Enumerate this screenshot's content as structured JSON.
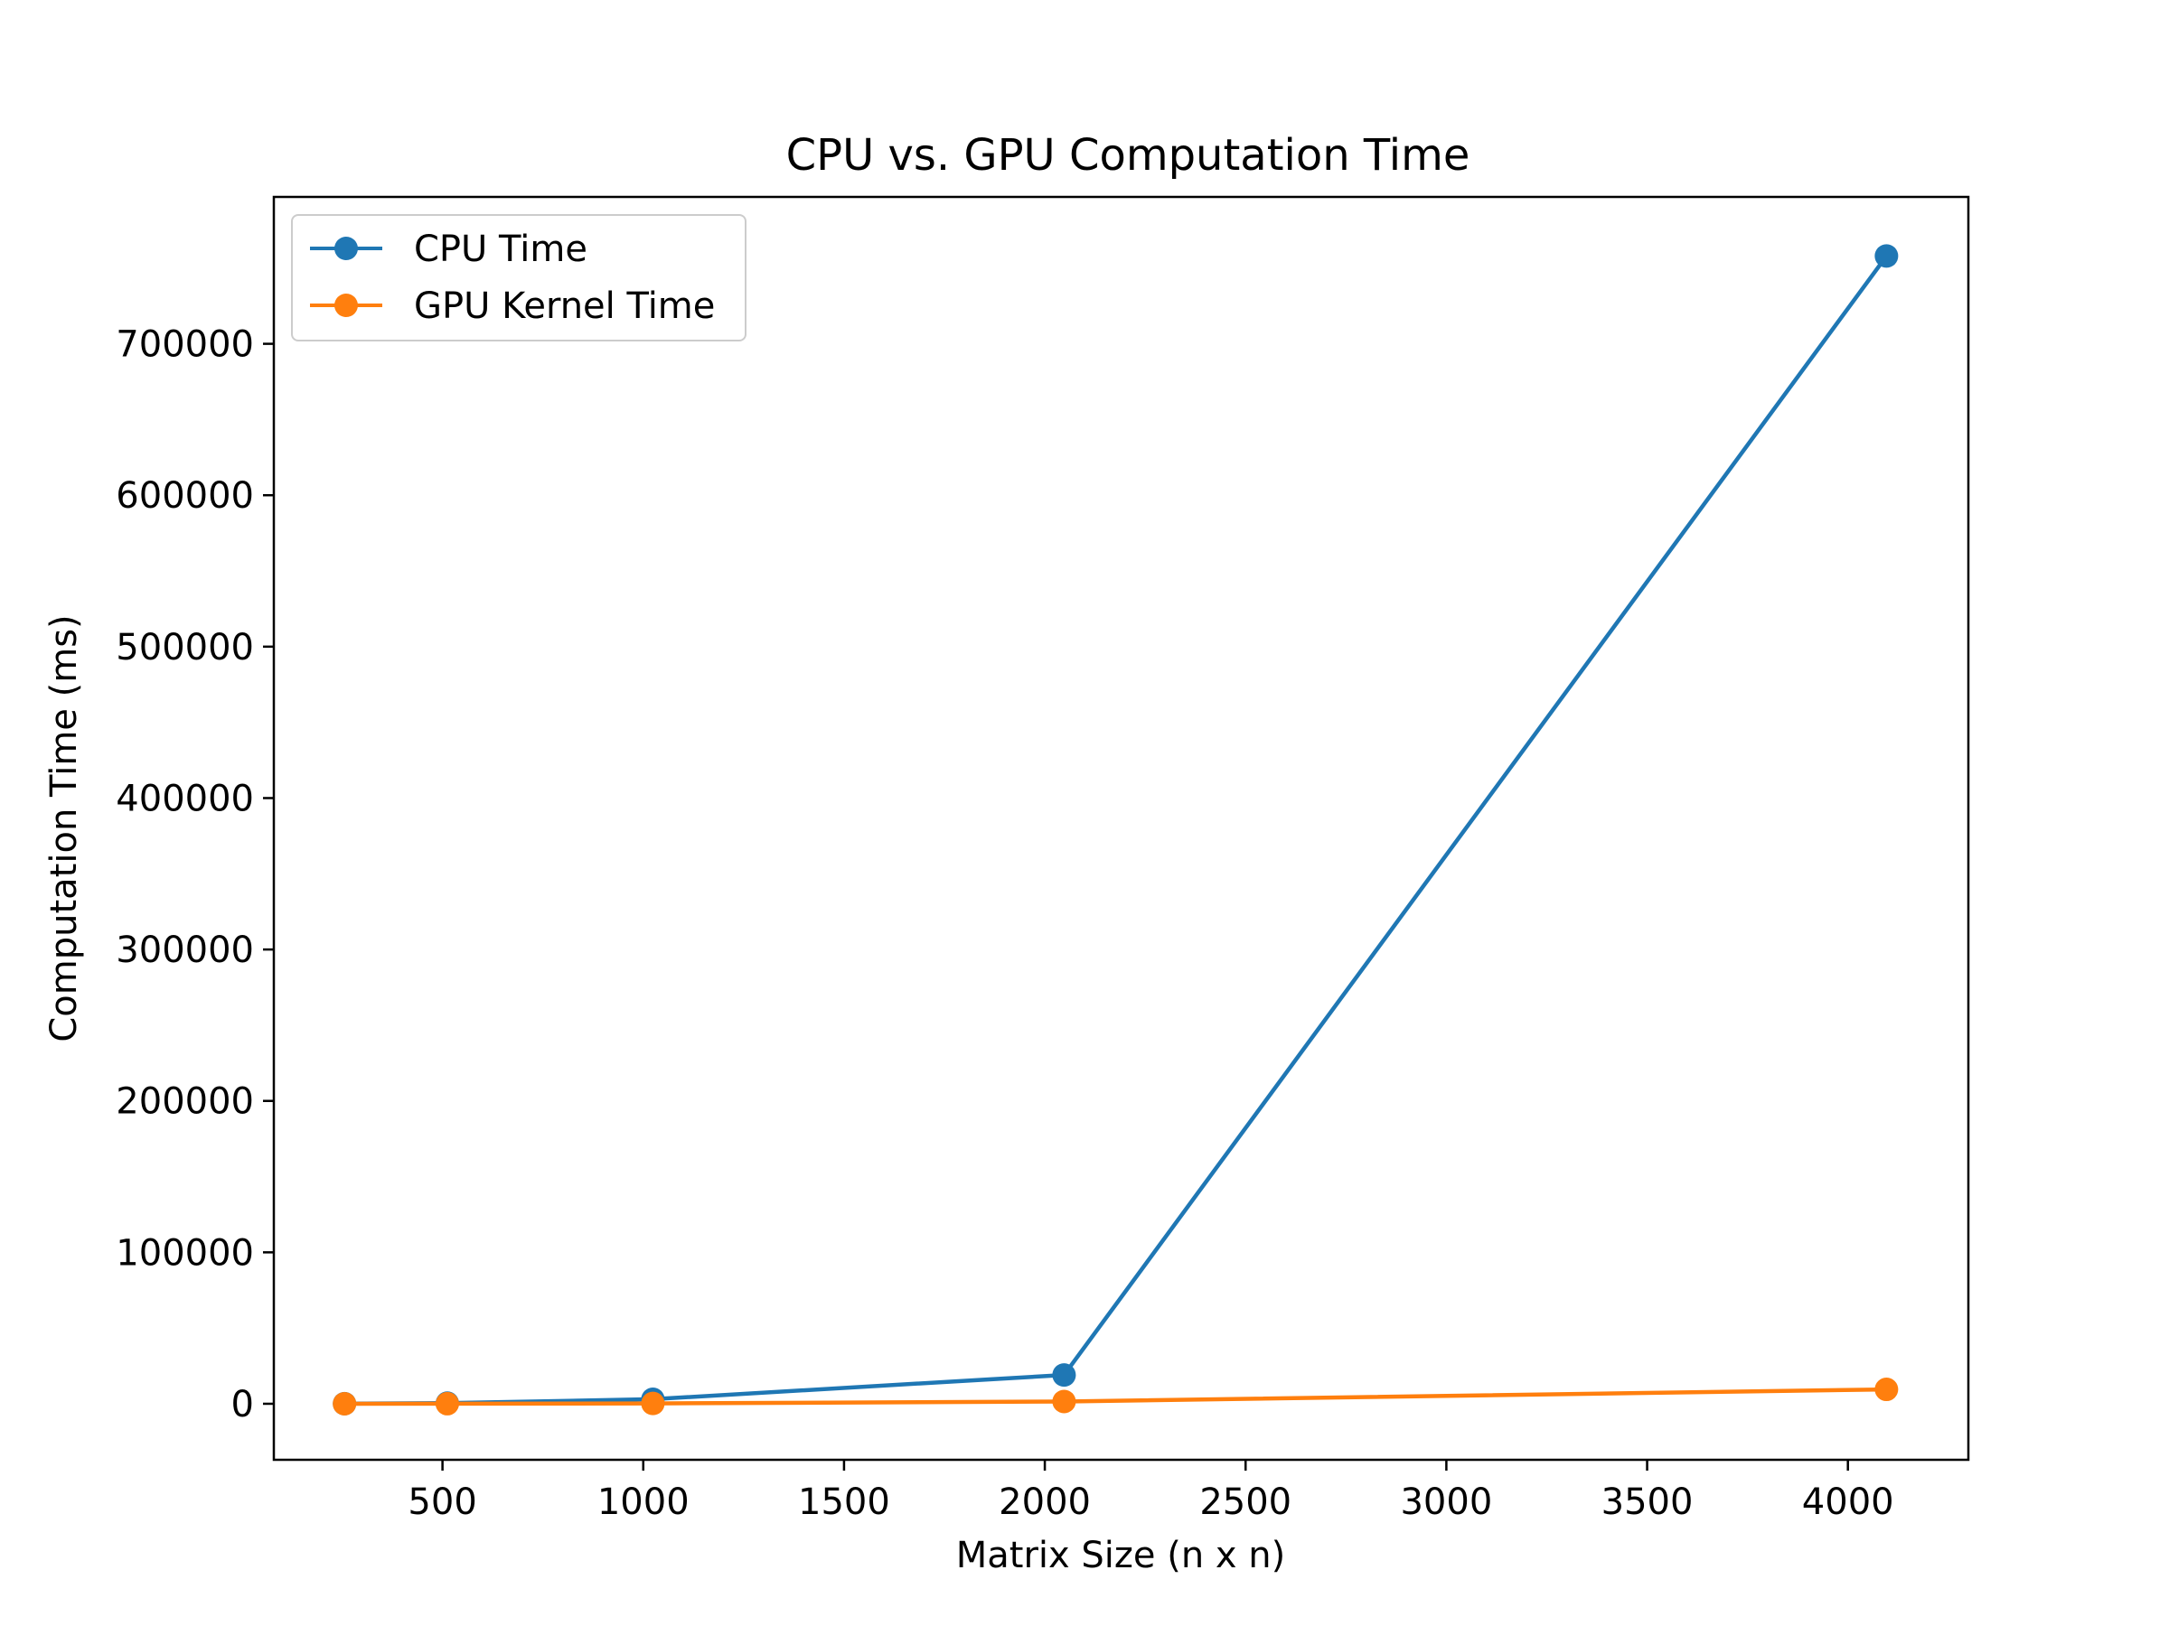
{
  "chart_data": {
    "type": "line",
    "title": "CPU vs. GPU Computation Time",
    "xlabel": "Matrix Size (n x n)",
    "ylabel": "Computation Time (ms)",
    "xlim": [
      80,
      4300
    ],
    "ylim": [
      -37000,
      797000
    ],
    "xticks": [
      500,
      1000,
      1500,
      2000,
      2500,
      3000,
      3500,
      4000
    ],
    "yticks": [
      0,
      100000,
      200000,
      300000,
      400000,
      500000,
      600000,
      700000
    ],
    "grid": false,
    "legend_position": "upper left",
    "series": [
      {
        "name": "CPU Time",
        "color": "#1f77b4",
        "x": [
          256,
          512,
          1024,
          2048,
          4096
        ],
        "y": [
          60,
          400,
          3000,
          19000,
          758000
        ]
      },
      {
        "name": "GPU Kernel Time",
        "color": "#ff7f0e",
        "x": [
          256,
          512,
          1024,
          2048,
          4096
        ],
        "y": [
          5,
          30,
          200,
          1500,
          9500
        ]
      }
    ]
  }
}
